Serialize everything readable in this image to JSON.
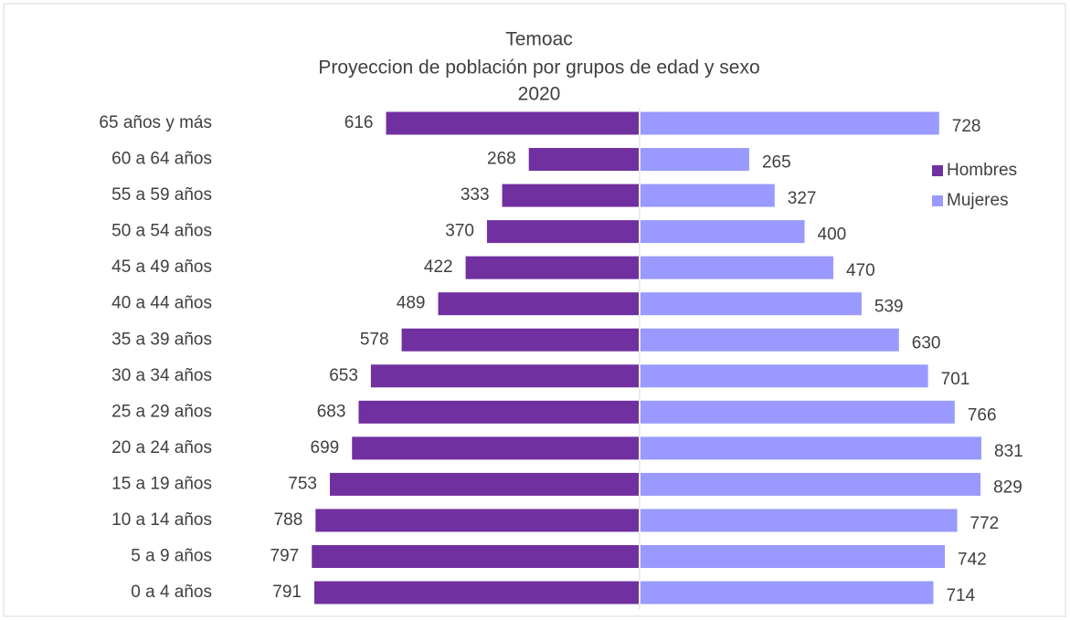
{
  "chart_data": {
    "type": "bar",
    "title": [
      "Temoac",
      "Proyeccion de población por grupos de edad y sexo",
      "2020"
    ],
    "categories": [
      "65 años y más",
      "60 a 64 años",
      "55 a 59 años",
      "50 a 54 años",
      "45 a 49 años",
      "40 a 44 años",
      "35 a 39 años",
      "30 a 34 años",
      "25 a 29 años",
      "20 a 24 años",
      "15 a 19 años",
      "10 a 14 años",
      "5 a 9 años",
      "0 a 4 años"
    ],
    "series": [
      {
        "name": "Hombres",
        "color": "#7030a0",
        "side": "left",
        "values": [
          616,
          268,
          333,
          370,
          422,
          489,
          578,
          653,
          683,
          699,
          753,
          788,
          797,
          791
        ]
      },
      {
        "name": "Mujeres",
        "color": "#9999ff",
        "side": "right",
        "values": [
          728,
          265,
          327,
          400,
          470,
          539,
          630,
          701,
          766,
          831,
          829,
          772,
          742,
          714
        ]
      }
    ],
    "legend": "upper right"
  }
}
